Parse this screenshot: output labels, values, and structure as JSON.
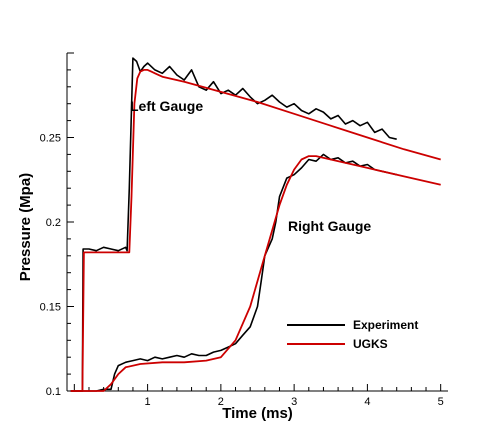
{
  "chart_data": {
    "type": "line",
    "xlabel": "Time (ms)",
    "ylabel": "Pressure (Mpa)",
    "xlim": [
      -0.1,
      5.1
    ],
    "ylim": [
      0.1,
      0.3
    ],
    "x_ticks": [
      "1",
      "2",
      "3",
      "4",
      "5"
    ],
    "y_ticks": [
      "0.1",
      "0.15",
      "0.2",
      "0.25"
    ],
    "grid": false,
    "legend_position": "lower-right",
    "annotations": [
      "Left Gauge",
      "Right Gauge"
    ],
    "legend": [
      "Experiment",
      "UGKS"
    ],
    "colors": {
      "Experiment": "#000000",
      "UGKS": "#cc0000"
    },
    "series": [
      {
        "name": "Experiment",
        "gauge": "Left Gauge",
        "x": [
          -0.05,
          0.05,
          0.11,
          0.12,
          0.2,
          0.3,
          0.4,
          0.5,
          0.6,
          0.7,
          0.72,
          0.75,
          0.8,
          0.85,
          0.9,
          0.95,
          1.0,
          1.1,
          1.2,
          1.3,
          1.4,
          1.5,
          1.6,
          1.7,
          1.8,
          1.9,
          2.0,
          2.1,
          2.2,
          2.3,
          2.4,
          2.5,
          2.6,
          2.7,
          2.8,
          2.9,
          3.0,
          3.1,
          3.2,
          3.3,
          3.4,
          3.5,
          3.6,
          3.7,
          3.8,
          3.9,
          4.0,
          4.1,
          4.2,
          4.3,
          4.4
        ],
        "y": [
          0.1,
          0.1,
          0.1,
          0.184,
          0.184,
          0.183,
          0.185,
          0.184,
          0.183,
          0.185,
          0.183,
          0.22,
          0.297,
          0.295,
          0.289,
          0.292,
          0.294,
          0.29,
          0.288,
          0.292,
          0.287,
          0.284,
          0.29,
          0.28,
          0.278,
          0.283,
          0.276,
          0.278,
          0.275,
          0.279,
          0.274,
          0.27,
          0.272,
          0.275,
          0.271,
          0.268,
          0.27,
          0.266,
          0.264,
          0.267,
          0.265,
          0.261,
          0.263,
          0.258,
          0.26,
          0.257,
          0.259,
          0.253,
          0.255,
          0.25,
          0.249
        ]
      },
      {
        "name": "UGKS",
        "gauge": "Left Gauge",
        "x": [
          -0.05,
          0.11,
          0.13,
          0.75,
          0.78,
          0.82,
          0.86,
          0.9,
          0.95,
          1.0,
          1.05,
          1.1,
          1.2,
          1.5,
          2.0,
          2.5,
          3.0,
          3.5,
          4.0,
          4.5,
          5.0
        ],
        "y": [
          0.1,
          0.1,
          0.182,
          0.182,
          0.215,
          0.27,
          0.285,
          0.289,
          0.29,
          0.29,
          0.289,
          0.288,
          0.286,
          0.283,
          0.277,
          0.271,
          0.264,
          0.257,
          0.25,
          0.243,
          0.237
        ]
      },
      {
        "name": "Experiment",
        "gauge": "Right Gauge",
        "x": [
          -0.05,
          0.3,
          0.4,
          0.5,
          0.55,
          0.6,
          0.7,
          0.8,
          0.9,
          1.0,
          1.1,
          1.2,
          1.3,
          1.4,
          1.5,
          1.6,
          1.7,
          1.8,
          1.9,
          2.0,
          2.1,
          2.2,
          2.3,
          2.4,
          2.5,
          2.55,
          2.6,
          2.65,
          2.7,
          2.75,
          2.8,
          2.9,
          3.0,
          3.1,
          3.2,
          3.3,
          3.4,
          3.5,
          3.6,
          3.7,
          3.8,
          3.9,
          4.0,
          4.1,
          4.2,
          4.3,
          4.4
        ],
        "y": [
          0.1,
          0.1,
          0.101,
          0.101,
          0.11,
          0.115,
          0.117,
          0.118,
          0.119,
          0.118,
          0.12,
          0.119,
          0.12,
          0.121,
          0.12,
          0.122,
          0.121,
          0.121,
          0.123,
          0.124,
          0.126,
          0.128,
          0.133,
          0.138,
          0.15,
          0.165,
          0.18,
          0.185,
          0.19,
          0.2,
          0.215,
          0.226,
          0.228,
          0.232,
          0.237,
          0.236,
          0.24,
          0.237,
          0.238,
          0.235,
          0.236,
          0.233,
          0.234,
          0.231,
          0.23,
          0.229,
          0.228
        ]
      },
      {
        "name": "UGKS",
        "gauge": "Right Gauge",
        "x": [
          -0.05,
          0.4,
          0.5,
          0.6,
          0.7,
          0.9,
          1.2,
          1.5,
          1.8,
          2.0,
          2.2,
          2.4,
          2.6,
          2.8,
          2.9,
          3.0,
          3.1,
          3.2,
          3.3,
          3.5,
          4.0,
          4.5,
          5.0
        ],
        "y": [
          0.1,
          0.1,
          0.104,
          0.11,
          0.114,
          0.116,
          0.117,
          0.117,
          0.118,
          0.12,
          0.13,
          0.15,
          0.18,
          0.21,
          0.222,
          0.231,
          0.237,
          0.239,
          0.239,
          0.237,
          0.232,
          0.227,
          0.222
        ]
      }
    ]
  }
}
